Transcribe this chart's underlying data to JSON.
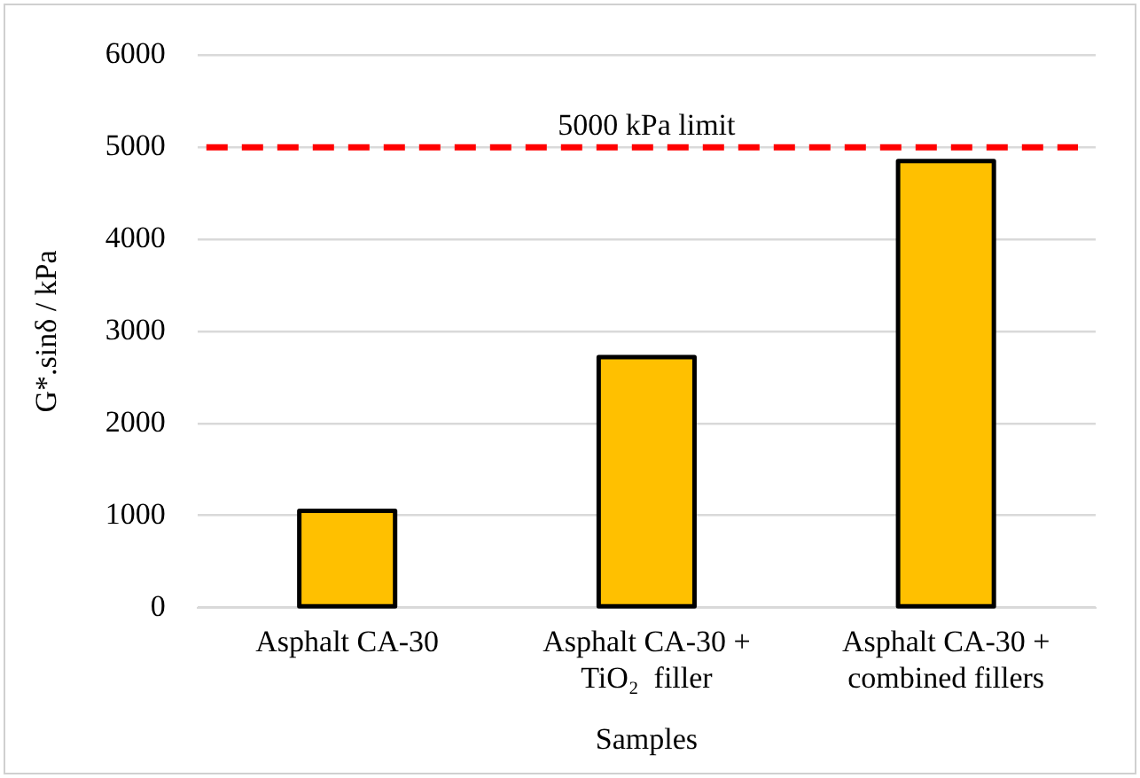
{
  "chart_data": {
    "type": "bar",
    "xlabel": "Samples",
    "ylabel": "G*.sinδ / kPa",
    "categories": [
      "Asphalt CA-30",
      "Asphalt CA-30 +\nTiO₂  filler",
      "Asphalt CA-30 +\ncombined fillers"
    ],
    "values": [
      1050,
      2720,
      4850
    ],
    "color": "#ffc000",
    "ylim": [
      0,
      6000
    ],
    "yticks": [
      0,
      1000,
      2000,
      3000,
      4000,
      5000,
      6000
    ],
    "grid": "y",
    "ref_lines": [
      {
        "axis": "y",
        "value": 5000,
        "label": "5000 kPa limit",
        "color": "#ff0000",
        "line_style": "dashed"
      }
    ]
  }
}
